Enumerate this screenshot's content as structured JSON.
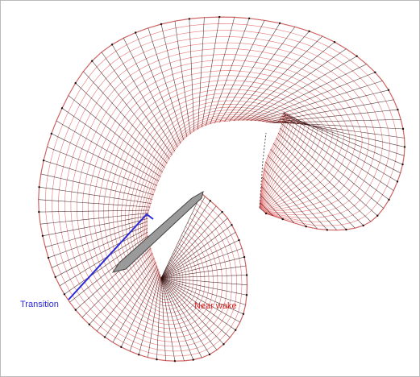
{
  "labels": {
    "transition": "Transition",
    "near_wake": "Near wake"
  }
}
